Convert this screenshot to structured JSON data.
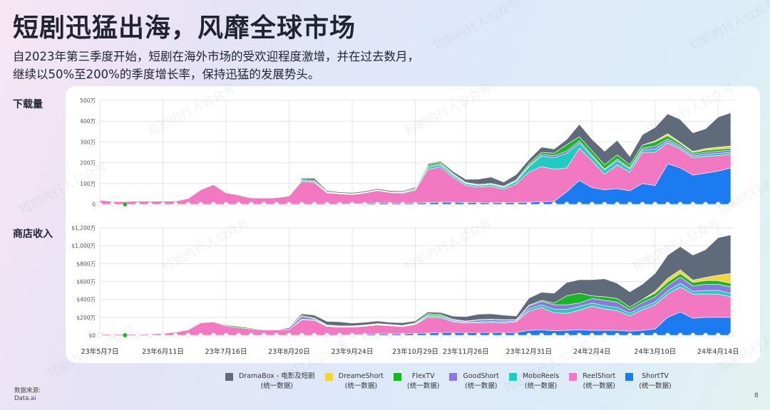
{
  "header": {
    "title": "短剧迅猛出海，风靡全球市场",
    "subtitle_line1": "自2023年第三季度开始，短剧在海外市场的受欢迎程度激增，并在过去数月，",
    "subtitle_line2": "继续以50%至200%的季度增长率，保持迅猛的发展势头。"
  },
  "sections": {
    "downloads_label": "下载量",
    "revenue_label": "商店收入"
  },
  "footer": {
    "source_label": "数据来源:",
    "source_value": "Data.ai",
    "page_number": "8"
  },
  "watermark": "短剧内行人公众号",
  "colors": {
    "DramaBox": "#5f6b7a",
    "DreameShort": "#f5d33a",
    "FlexTV": "#17b823",
    "GoodShort": "#8a78e0",
    "MoboReels": "#1fcdc0",
    "ReelShort": "#f178c1",
    "ShortTV": "#1a7cf0"
  },
  "legend": [
    {
      "name": "DramaBox - 电影及短剧",
      "sub": "(统一数据)",
      "color": "#5f6b7a"
    },
    {
      "name": "DreameShort",
      "sub": "(统一数据)",
      "color": "#f5d33a"
    },
    {
      "name": "FlexTV",
      "sub": "(统一数据)",
      "color": "#17b823"
    },
    {
      "name": "GoodShort",
      "sub": "(统一数据)",
      "color": "#8a78e0"
    },
    {
      "name": "MoboReels",
      "sub": "(统一数据)",
      "color": "#1fcdc0"
    },
    {
      "name": "ReelShort",
      "sub": "(统一数据)",
      "color": "#f178c1"
    },
    {
      "name": "ShortTV",
      "sub": "(统一数据)",
      "color": "#1a7cf0"
    }
  ],
  "chart_data": [
    {
      "type": "area",
      "stacked": true,
      "title": "下载量",
      "ylabel": "下载量",
      "y_ticks": [
        "0",
        "100万",
        "200万",
        "300万",
        "400万",
        "500万"
      ],
      "ylim": [
        0,
        500
      ],
      "unit": "万",
      "x_ticks": [
        "23年5月7日",
        "23年6月11日",
        "23年7月16日",
        "23年8月20日",
        "23年9月24日",
        "23年10月29日",
        "23年11月26日",
        "23年12月31日",
        "24年2月4日",
        "24年3月10日",
        "24年4月14日"
      ],
      "x_tick_index": [
        0,
        5,
        10,
        15,
        20,
        25,
        29,
        34,
        39,
        44,
        49
      ],
      "grid": true,
      "series": [
        {
          "name": "ShortTV",
          "values": [
            0,
            0,
            0,
            0,
            0,
            0,
            0,
            0,
            0,
            0,
            0,
            0,
            0,
            0,
            0,
            0,
            0,
            0,
            0,
            0,
            2,
            4,
            6,
            6,
            5,
            6,
            8,
            10,
            10,
            9,
            8,
            7,
            8,
            8,
            10,
            12,
            14,
            60,
            115,
            80,
            70,
            75,
            65,
            100,
            90,
            195,
            175,
            140,
            150,
            160,
            175
          ]
        },
        {
          "name": "ReelShort",
          "values": [
            20,
            14,
            14,
            15,
            15,
            15,
            15,
            28,
            70,
            95,
            55,
            45,
            30,
            30,
            32,
            40,
            110,
            105,
            55,
            50,
            45,
            50,
            60,
            50,
            48,
            62,
            160,
            170,
            120,
            82,
            75,
            80,
            65,
            90,
            145,
            170,
            155,
            115,
            155,
            130,
            75,
            115,
            90,
            150,
            160,
            100,
            90,
            85,
            80,
            75,
            65
          ]
        },
        {
          "name": "MoboReels",
          "values": [
            0,
            0,
            0,
            0,
            0,
            0,
            0,
            0,
            0,
            0,
            0,
            0,
            0,
            0,
            0,
            0,
            5,
            5,
            3,
            2,
            2,
            2,
            2,
            2,
            3,
            5,
            10,
            10,
            10,
            8,
            7,
            8,
            8,
            12,
            25,
            50,
            55,
            70,
            25,
            20,
            20,
            20,
            15,
            12,
            15,
            10,
            8,
            8,
            10,
            10,
            10
          ]
        },
        {
          "name": "GoodShort",
          "values": [
            0,
            0,
            0,
            0,
            0,
            0,
            0,
            0,
            0,
            0,
            0,
            0,
            0,
            0,
            0,
            0,
            0,
            0,
            0,
            0,
            0,
            0,
            0,
            0,
            0,
            0,
            5,
            5,
            3,
            3,
            3,
            3,
            3,
            3,
            5,
            8,
            10,
            12,
            10,
            8,
            5,
            8,
            5,
            8,
            15,
            10,
            10,
            8,
            10,
            10,
            10
          ]
        },
        {
          "name": "FlexTV",
          "values": [
            0,
            0,
            0,
            0,
            0,
            0,
            0,
            0,
            0,
            0,
            0,
            0,
            0,
            0,
            0,
            0,
            5,
            5,
            3,
            2,
            2,
            2,
            2,
            2,
            3,
            5,
            8,
            8,
            5,
            3,
            3,
            3,
            3,
            5,
            10,
            10,
            12,
            30,
            20,
            20,
            20,
            20,
            15,
            15,
            20,
            15,
            10,
            8,
            10,
            10,
            10
          ]
        },
        {
          "name": "DreameShort",
          "values": [
            0,
            0,
            0,
            0,
            0,
            0,
            0,
            0,
            0,
            0,
            0,
            0,
            0,
            0,
            0,
            0,
            0,
            0,
            0,
            0,
            0,
            0,
            0,
            0,
            0,
            0,
            0,
            0,
            0,
            0,
            0,
            0,
            0,
            0,
            0,
            0,
            0,
            0,
            0,
            0,
            0,
            0,
            0,
            0,
            5,
            10,
            5,
            5,
            8,
            10,
            10
          ]
        },
        {
          "name": "DramaBox",
          "values": [
            0,
            0,
            0,
            0,
            0,
            0,
            0,
            0,
            0,
            0,
            0,
            0,
            0,
            0,
            0,
            0,
            5,
            10,
            5,
            5,
            5,
            5,
            5,
            5,
            5,
            5,
            5,
            5,
            10,
            15,
            25,
            30,
            20,
            25,
            20,
            25,
            20,
            25,
            60,
            55,
            65,
            70,
            40,
            50,
            65,
            95,
            110,
            90,
            95,
            145,
            160
          ]
        }
      ]
    },
    {
      "type": "area",
      "stacked": true,
      "title": "商店收入",
      "ylabel": "商店收入",
      "y_ticks": [
        "$0",
        "$200万",
        "$400万",
        "$600万",
        "$800万",
        "$1,000万",
        "$1,200万"
      ],
      "ylim": [
        0,
        1200
      ],
      "unit": "$万",
      "x_ticks": [
        "23年5月7日",
        "23年6月11日",
        "23年7月16日",
        "23年8月20日",
        "23年9月24日",
        "23年10月29日",
        "23年11月26日",
        "23年12月31日",
        "24年2月4日",
        "24年3月10日",
        "24年4月14日"
      ],
      "x_tick_index": [
        0,
        5,
        10,
        15,
        20,
        25,
        29,
        34,
        39,
        44,
        49
      ],
      "grid": true,
      "series": [
        {
          "name": "ShortTV",
          "values": [
            0,
            0,
            0,
            0,
            0,
            0,
            0,
            0,
            0,
            0,
            0,
            0,
            0,
            0,
            0,
            0,
            0,
            0,
            0,
            0,
            5,
            10,
            15,
            15,
            15,
            20,
            25,
            30,
            30,
            30,
            30,
            30,
            30,
            30,
            55,
            60,
            50,
            55,
            60,
            55,
            55,
            55,
            45,
            55,
            70,
            200,
            260,
            190,
            200,
            200,
            200
          ]
        },
        {
          "name": "ReelShort",
          "values": [
            10,
            10,
            10,
            10,
            15,
            20,
            35,
            60,
            140,
            150,
            105,
            85,
            70,
            60,
            60,
            65,
            170,
            165,
            100,
            90,
            85,
            90,
            100,
            90,
            80,
            100,
            175,
            165,
            120,
            105,
            110,
            115,
            110,
            120,
            215,
            250,
            200,
            190,
            220,
            270,
            240,
            220,
            170,
            230,
            270,
            260,
            280,
            270,
            260,
            260,
            230
          ]
        },
        {
          "name": "MoboReels",
          "values": [
            0,
            0,
            0,
            0,
            0,
            0,
            0,
            0,
            0,
            0,
            0,
            0,
            0,
            0,
            0,
            0,
            10,
            10,
            5,
            5,
            5,
            5,
            5,
            5,
            5,
            5,
            15,
            15,
            10,
            8,
            10,
            10,
            10,
            10,
            25,
            30,
            40,
            45,
            40,
            35,
            35,
            35,
            30,
            30,
            30,
            35,
            40,
            30,
            40,
            40,
            40
          ]
        },
        {
          "name": "GoodShort",
          "values": [
            0,
            0,
            0,
            0,
            0,
            0,
            0,
            0,
            0,
            0,
            0,
            0,
            0,
            0,
            0,
            20,
            30,
            10,
            5,
            5,
            5,
            5,
            5,
            5,
            5,
            5,
            10,
            10,
            10,
            10,
            20,
            20,
            20,
            10,
            30,
            40,
            50,
            50,
            40,
            50,
            60,
            60,
            40,
            50,
            60,
            60,
            70,
            60,
            70,
            70,
            70
          ]
        },
        {
          "name": "FlexTV",
          "values": [
            0,
            0,
            0,
            0,
            0,
            0,
            0,
            0,
            0,
            0,
            10,
            15,
            10,
            5,
            5,
            5,
            10,
            10,
            5,
            5,
            5,
            5,
            5,
            5,
            5,
            10,
            15,
            15,
            8,
            5,
            5,
            5,
            5,
            5,
            10,
            10,
            20,
            100,
            110,
            30,
            40,
            40,
            30,
            35,
            40,
            40,
            40,
            40,
            40,
            40,
            40
          ]
        },
        {
          "name": "DreameShort",
          "values": [
            0,
            0,
            0,
            0,
            0,
            0,
            0,
            0,
            0,
            0,
            0,
            0,
            0,
            0,
            0,
            0,
            0,
            0,
            0,
            0,
            0,
            0,
            0,
            0,
            0,
            0,
            0,
            0,
            0,
            0,
            0,
            0,
            0,
            0,
            0,
            0,
            0,
            0,
            0,
            0,
            0,
            0,
            0,
            0,
            20,
            40,
            40,
            25,
            35,
            60,
            110
          ]
        },
        {
          "name": "DramaBox",
          "values": [
            0,
            0,
            0,
            0,
            0,
            0,
            0,
            0,
            0,
            0,
            0,
            0,
            0,
            0,
            0,
            5,
            20,
            30,
            40,
            45,
            30,
            30,
            30,
            25,
            30,
            20,
            20,
            20,
            35,
            50,
            60,
            60,
            50,
            40,
            80,
            90,
            110,
            150,
            150,
            180,
            200,
            170,
            170,
            170,
            200,
            260,
            260,
            280,
            310,
            420,
            430
          ]
        }
      ]
    }
  ]
}
